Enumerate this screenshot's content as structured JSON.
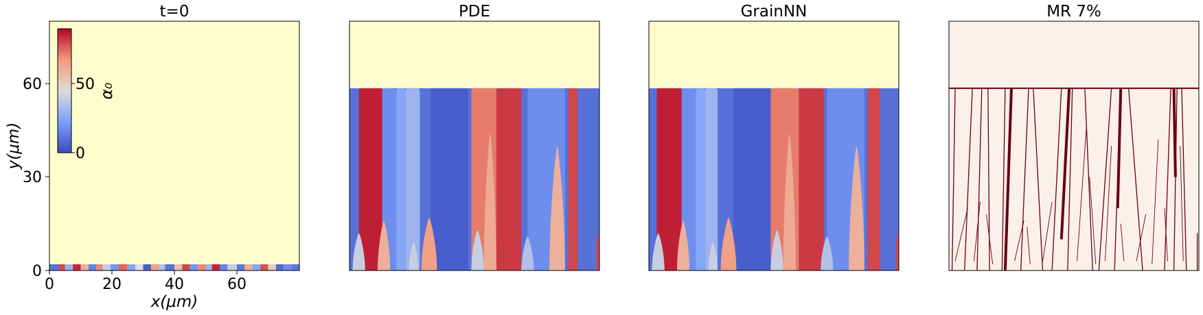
{
  "chart_data": [
    {
      "type": "heatmap",
      "title": "t=0",
      "xlabel": "x(μm)",
      "ylabel": "y(μm)",
      "xlim": [
        0,
        80
      ],
      "ylim": [
        0,
        80
      ],
      "xticks": [
        "0",
        "20",
        "40",
        "60"
      ],
      "yticks": [
        "0",
        "30",
        "60"
      ],
      "background_color": "#fdfdcd",
      "interface_y": 2,
      "colorbar": {
        "label": "α₀",
        "range": [
          0,
          90
        ],
        "ticks": [
          "0",
          "50"
        ]
      },
      "grains": [
        {
          "x0": 0,
          "x1": 3,
          "value": 10
        },
        {
          "x0": 3,
          "x1": 5,
          "value": 80
        },
        {
          "x0": 5,
          "x1": 7.5,
          "value": 30
        },
        {
          "x0": 7.5,
          "x1": 10,
          "value": 85
        },
        {
          "x0": 10,
          "x1": 12.5,
          "value": 60
        },
        {
          "x0": 12.5,
          "x1": 15,
          "value": 15
        },
        {
          "x0": 15,
          "x1": 17,
          "value": 70
        },
        {
          "x0": 17,
          "x1": 19.5,
          "value": 40
        },
        {
          "x0": 19.5,
          "x1": 22,
          "value": 20
        },
        {
          "x0": 22,
          "x1": 25,
          "value": 75
        },
        {
          "x0": 25,
          "x1": 27.5,
          "value": 25
        },
        {
          "x0": 27.5,
          "x1": 30,
          "value": 45
        },
        {
          "x0": 30,
          "x1": 32.5,
          "value": 5
        },
        {
          "x0": 32.5,
          "x1": 35,
          "value": 65
        },
        {
          "x0": 35,
          "x1": 37,
          "value": 35
        },
        {
          "x0": 37,
          "x1": 40,
          "value": 10
        },
        {
          "x0": 40,
          "x1": 42.5,
          "value": 55
        },
        {
          "x0": 42.5,
          "x1": 45,
          "value": 80
        },
        {
          "x0": 45,
          "x1": 47.5,
          "value": 20
        },
        {
          "x0": 47.5,
          "x1": 50,
          "value": 70
        },
        {
          "x0": 50,
          "x1": 52,
          "value": 30
        },
        {
          "x0": 52,
          "x1": 54.5,
          "value": 85
        },
        {
          "x0": 54.5,
          "x1": 57,
          "value": 15
        },
        {
          "x0": 57,
          "x1": 60,
          "value": 40
        },
        {
          "x0": 60,
          "x1": 62.5,
          "value": 12
        },
        {
          "x0": 62.5,
          "x1": 65,
          "value": 60
        },
        {
          "x0": 65,
          "x1": 67.5,
          "value": 25
        },
        {
          "x0": 67.5,
          "x1": 70,
          "value": 78
        },
        {
          "x0": 70,
          "x1": 72.5,
          "value": 50
        },
        {
          "x0": 72.5,
          "x1": 75,
          "value": 8
        },
        {
          "x0": 75,
          "x1": 77.5,
          "value": 18
        },
        {
          "x0": 77.5,
          "x1": 80,
          "value": 12
        }
      ]
    },
    {
      "type": "heatmap",
      "title": "PDE",
      "xlim": [
        0,
        80
      ],
      "ylim": [
        0,
        80
      ],
      "background_color": "#fdfdcd",
      "interface_y": 58.5,
      "base_value": 10,
      "columns": [
        {
          "x0": 3,
          "x1": 10.5,
          "value": 86
        },
        {
          "x0": 10.5,
          "x1": 15,
          "value": 18
        },
        {
          "x0": 15,
          "x1": 18,
          "value": 25
        },
        {
          "x0": 18,
          "x1": 22.5,
          "value": 30
        },
        {
          "x0": 26,
          "x1": 38,
          "value": 5
        },
        {
          "x0": 39,
          "x1": 47,
          "value": 72
        },
        {
          "x0": 47,
          "x1": 55,
          "value": 82
        },
        {
          "x0": 57,
          "x1": 69,
          "value": 18
        },
        {
          "x0": 70,
          "x1": 73,
          "value": 80
        }
      ],
      "spikes": [
        {
          "x0": 1,
          "x1": 5,
          "height": 12,
          "value": 40
        },
        {
          "x0": 9,
          "x1": 13,
          "height": 16,
          "value": 60
        },
        {
          "x0": 19,
          "x1": 22,
          "height": 9,
          "value": 40
        },
        {
          "x0": 23,
          "x1": 28,
          "height": 17,
          "value": 65
        },
        {
          "x0": 39,
          "x1": 43,
          "height": 13,
          "value": 40
        },
        {
          "x0": 43,
          "x1": 47,
          "height": 44,
          "value": 62
        },
        {
          "x0": 55,
          "x1": 59,
          "height": 11,
          "value": 35
        },
        {
          "x0": 64,
          "x1": 69,
          "height": 40,
          "value": 60
        },
        {
          "x0": 79,
          "x1": 80,
          "height": 12,
          "value": 80
        }
      ]
    },
    {
      "type": "heatmap",
      "title": "GrainNN",
      "xlim": [
        0,
        80
      ],
      "ylim": [
        0,
        80
      ],
      "background_color": "#fdfdcd",
      "interface_y": 58.5,
      "base_value": 10,
      "columns": [
        {
          "x0": 2.5,
          "x1": 10.5,
          "value": 86
        },
        {
          "x0": 10.5,
          "x1": 15,
          "value": 18
        },
        {
          "x0": 15,
          "x1": 18,
          "value": 25
        },
        {
          "x0": 18,
          "x1": 22,
          "value": 30
        },
        {
          "x0": 27,
          "x1": 39,
          "value": 5
        },
        {
          "x0": 39,
          "x1": 48,
          "value": 72
        },
        {
          "x0": 48,
          "x1": 56,
          "value": 82
        },
        {
          "x0": 57,
          "x1": 69,
          "value": 18
        },
        {
          "x0": 70,
          "x1": 74,
          "value": 80
        }
      ],
      "spikes": [
        {
          "x0": 1,
          "x1": 5,
          "height": 12,
          "value": 40
        },
        {
          "x0": 9,
          "x1": 13,
          "height": 16,
          "value": 60
        },
        {
          "x0": 19,
          "x1": 22,
          "height": 9,
          "value": 40
        },
        {
          "x0": 23,
          "x1": 28,
          "height": 17,
          "value": 65
        },
        {
          "x0": 39,
          "x1": 43,
          "height": 13,
          "value": 40
        },
        {
          "x0": 43,
          "x1": 47,
          "height": 44,
          "value": 62
        },
        {
          "x0": 55,
          "x1": 59,
          "height": 11,
          "value": 35
        },
        {
          "x0": 64,
          "x1": 69,
          "height": 40,
          "value": 60
        },
        {
          "x0": 79,
          "x1": 80,
          "height": 12,
          "value": 80
        }
      ]
    },
    {
      "type": "heatmap",
      "title": "MR 7%",
      "xlim": [
        0,
        80
      ],
      "ylim": [
        0,
        80
      ],
      "background_color": "#fbf0ea",
      "line_color": "#670010",
      "interface_y": 58.5,
      "boundaries": [
        [
          1,
          0,
          2,
          58.5
        ],
        [
          5,
          0,
          7.5,
          58.5
        ],
        [
          9,
          0,
          10.5,
          58.5
        ],
        [
          13,
          0,
          12.5,
          58.5
        ],
        [
          17,
          0,
          18,
          58.5
        ],
        [
          23,
          0,
          25.5,
          58.5
        ],
        [
          30,
          0,
          27,
          58.5
        ],
        [
          33,
          0,
          36,
          58.5
        ],
        [
          38,
          0,
          39.5,
          58.5
        ],
        [
          46,
          0,
          43.5,
          58.5
        ],
        [
          48,
          0,
          52,
          58.5
        ],
        [
          53,
          0,
          55,
          58.5
        ],
        [
          62,
          0,
          57.5,
          58.5
        ],
        [
          69,
          0,
          71,
          58.5
        ],
        [
          72,
          0,
          73,
          58.5
        ],
        [
          76,
          0,
          74.5,
          58.5
        ],
        [
          79.5,
          0,
          79.5,
          12
        ]
      ],
      "thick_boundaries": [
        [
          18,
          0,
          20,
          58.5
        ],
        [
          36,
          10,
          38.5,
          58.5
        ],
        [
          54,
          20,
          55,
          58.5
        ],
        [
          72.5,
          30,
          72,
          58.5
        ]
      ],
      "branches": [
        [
          2,
          3,
          6,
          20
        ],
        [
          8,
          3,
          10,
          22
        ],
        [
          14,
          2,
          12,
          18
        ],
        [
          21,
          3,
          24,
          16
        ],
        [
          26,
          2,
          25,
          14
        ],
        [
          30,
          3,
          33,
          22
        ],
        [
          41,
          3,
          44,
          46
        ],
        [
          47,
          2,
          45,
          30
        ],
        [
          50,
          3,
          52,
          40
        ],
        [
          56,
          3,
          55,
          15
        ],
        [
          60,
          3,
          63,
          18
        ],
        [
          65,
          2,
          67,
          42
        ],
        [
          70,
          3,
          69,
          20
        ],
        [
          75,
          3,
          74,
          40
        ]
      ]
    }
  ]
}
